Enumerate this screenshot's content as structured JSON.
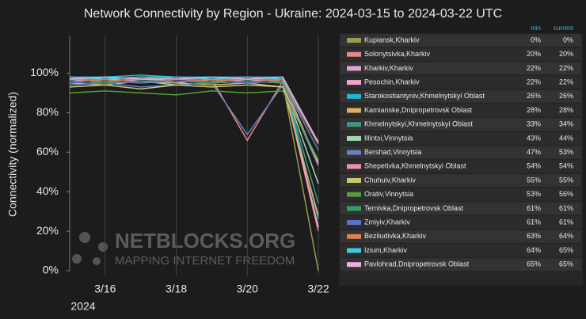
{
  "chart_data": {
    "type": "line",
    "title": "Network Connectivity by Region - Ukraine: 2024-03-15 to 2024-03-22 UTC",
    "y_label": "Connectivity (normalized)",
    "x_year_label": "2024",
    "watermark": {
      "brand": "NETBLOCKS.ORG",
      "tagline": "MAPPING INTERNET FREEDOM"
    },
    "legend_columns": [
      "min",
      "current"
    ],
    "x": [
      "2024-03-15",
      "2024-03-16",
      "2024-03-17",
      "2024-03-18",
      "2024-03-19",
      "2024-03-20",
      "2024-03-21",
      "2024-03-22"
    ],
    "xlim": [
      "2024-03-15",
      "2024-03-22"
    ],
    "xticks": [
      {
        "value": "2024-03-16",
        "label": "3/16"
      },
      {
        "value": "2024-03-18",
        "label": "3/18"
      },
      {
        "value": "2024-03-20",
        "label": "3/20"
      },
      {
        "value": "2024-03-22",
        "label": "3/22"
      }
    ],
    "ylim": [
      0,
      119
    ],
    "yticks": [
      {
        "value": 0,
        "label": "0%"
      },
      {
        "value": 20,
        "label": "20%"
      },
      {
        "value": 40,
        "label": "40%"
      },
      {
        "value": 60,
        "label": "60%"
      },
      {
        "value": 80,
        "label": "80%"
      },
      {
        "value": 100,
        "label": "100%"
      }
    ],
    "grid": true,
    "series": [
      {
        "name": "Kupiansk,Kharkiv",
        "color": "#9a9a50",
        "min": "0%",
        "current": "0%",
        "values": [
          97,
          96,
          97,
          96,
          95,
          96,
          95,
          0
        ]
      },
      {
        "name": "Solonytsivka,Kharkiv",
        "color": "#e88a8a",
        "min": "20%",
        "current": "20%",
        "values": [
          98,
          97,
          98,
          97,
          97,
          66,
          96,
          20
        ]
      },
      {
        "name": "Kharkiv,Kharkiv",
        "color": "#e0a0d8",
        "min": "22%",
        "current": "22%",
        "values": [
          97,
          98,
          97,
          98,
          97,
          97,
          96,
          22
        ]
      },
      {
        "name": "Pesochin,Kharkiv",
        "color": "#f0a8c8",
        "min": "22%",
        "current": "22%",
        "values": [
          96,
          97,
          96,
          95,
          97,
          96,
          97,
          22
        ]
      },
      {
        "name": "Starokostiantyniv,Khmelnytskyi Oblast",
        "color": "#20b8d0",
        "min": "26%",
        "current": "26%",
        "values": [
          98,
          98,
          99,
          98,
          98,
          98,
          98,
          26
        ]
      },
      {
        "name": "Kamianske,Dnipropetrovsk Oblast",
        "color": "#e0b060",
        "min": "28%",
        "current": "28%",
        "values": [
          95,
          94,
          96,
          95,
          94,
          95,
          93,
          28
        ]
      },
      {
        "name": "Khmelnytskyi,Khmelnytskyi Oblast",
        "color": "#3a9a80",
        "min": "33%",
        "current": "34%",
        "values": [
          97,
          97,
          98,
          97,
          97,
          97,
          97,
          34
        ]
      },
      {
        "name": "Illintsi,Vinnytsia",
        "color": "#a0d8b0",
        "min": "43%",
        "current": "44%",
        "values": [
          96,
          95,
          96,
          94,
          95,
          96,
          95,
          44
        ]
      },
      {
        "name": "Bershad,Vinnytsia",
        "color": "#6a80c0",
        "min": "47%",
        "current": "53%",
        "values": [
          94,
          95,
          93,
          94,
          95,
          69,
          94,
          53
        ]
      },
      {
        "name": "Shepetivka,Khmelnytskyi Oblast",
        "color": "#e890b0",
        "min": "54%",
        "current": "54%",
        "values": [
          97,
          96,
          97,
          96,
          96,
          97,
          96,
          54
        ]
      },
      {
        "name": "Chuhuiv,Kharkiv",
        "color": "#c8c870",
        "min": "55%",
        "current": "55%",
        "values": [
          93,
          94,
          92,
          94,
          93,
          94,
          93,
          55
        ]
      },
      {
        "name": "Orativ,Vinnytsia",
        "color": "#5a9a40",
        "min": "53%",
        "current": "56%",
        "values": [
          90,
          91,
          90,
          89,
          91,
          90,
          91,
          56
        ]
      },
      {
        "name": "Ternivka,Dnipropetrovsk Oblast",
        "color": "#30a060",
        "min": "61%",
        "current": "61%",
        "values": [
          96,
          95,
          96,
          96,
          95,
          96,
          95,
          61
        ]
      },
      {
        "name": "Zmiyiv,Kharkiv",
        "color": "#6070d0",
        "min": "61%",
        "current": "61%",
        "values": [
          95,
          96,
          95,
          96,
          96,
          95,
          96,
          61
        ]
      },
      {
        "name": "Bezliudivka,Kharkiv",
        "color": "#e08050",
        "min": "63%",
        "current": "64%",
        "values": [
          97,
          96,
          97,
          97,
          96,
          97,
          96,
          64
        ]
      },
      {
        "name": "Izium,Kharkiv",
        "color": "#40c8e0",
        "min": "64%",
        "current": "65%",
        "values": [
          98,
          97,
          98,
          98,
          97,
          98,
          97,
          65
        ]
      },
      {
        "name": "Pavlohrad,Dnipropetrovsk Oblast",
        "color": "#f0b0e0",
        "min": "65%",
        "current": "65%",
        "values": [
          97,
          98,
          97,
          97,
          98,
          97,
          98,
          65
        ]
      }
    ]
  }
}
